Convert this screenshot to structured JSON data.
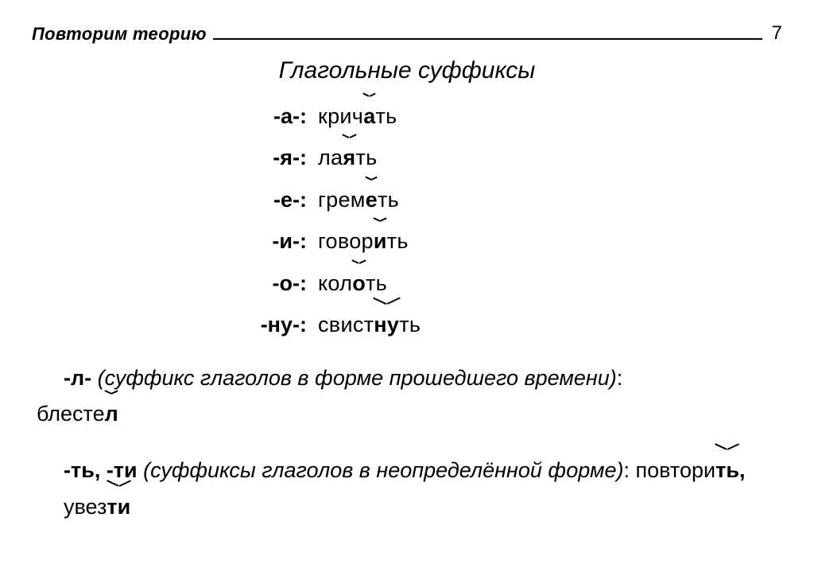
{
  "header": {
    "label": "Повторим теорию",
    "page_number": "7"
  },
  "title": "Глагольные суффиксы",
  "suffixes": [
    {
      "key": "-а-:",
      "pre": "крич",
      "mark": "а",
      "post": "ть"
    },
    {
      "key": "-я-:",
      "pre": "ла",
      "mark": "я",
      "post": "ть"
    },
    {
      "key": "-е-:",
      "pre": "грем",
      "mark": "е",
      "post": "ть"
    },
    {
      "key": "-и-:",
      "pre": "говор",
      "mark": "и",
      "post": "ть"
    },
    {
      "key": "-о-:",
      "pre": "кол",
      "mark": "о",
      "post": "ть"
    },
    {
      "key": "-ну-:",
      "pre": "свист",
      "mark": "ну",
      "post": "ть"
    }
  ],
  "past": {
    "key": "-л- ",
    "paren_text": "(суффикс глаголов в форме прошедшего времени)",
    "colon": ":",
    "example_pre": "блесте",
    "example_mark": "л"
  },
  "infinitive": {
    "key": "-ть, -ти ",
    "paren_text": "(суффиксы глаголов в неопределённой форме)",
    "colon": ": ",
    "example1_pre": "повтори",
    "example1_mark": "ть",
    "comma": ", ",
    "example2_pre": "увез",
    "example2_mark": "ти"
  }
}
